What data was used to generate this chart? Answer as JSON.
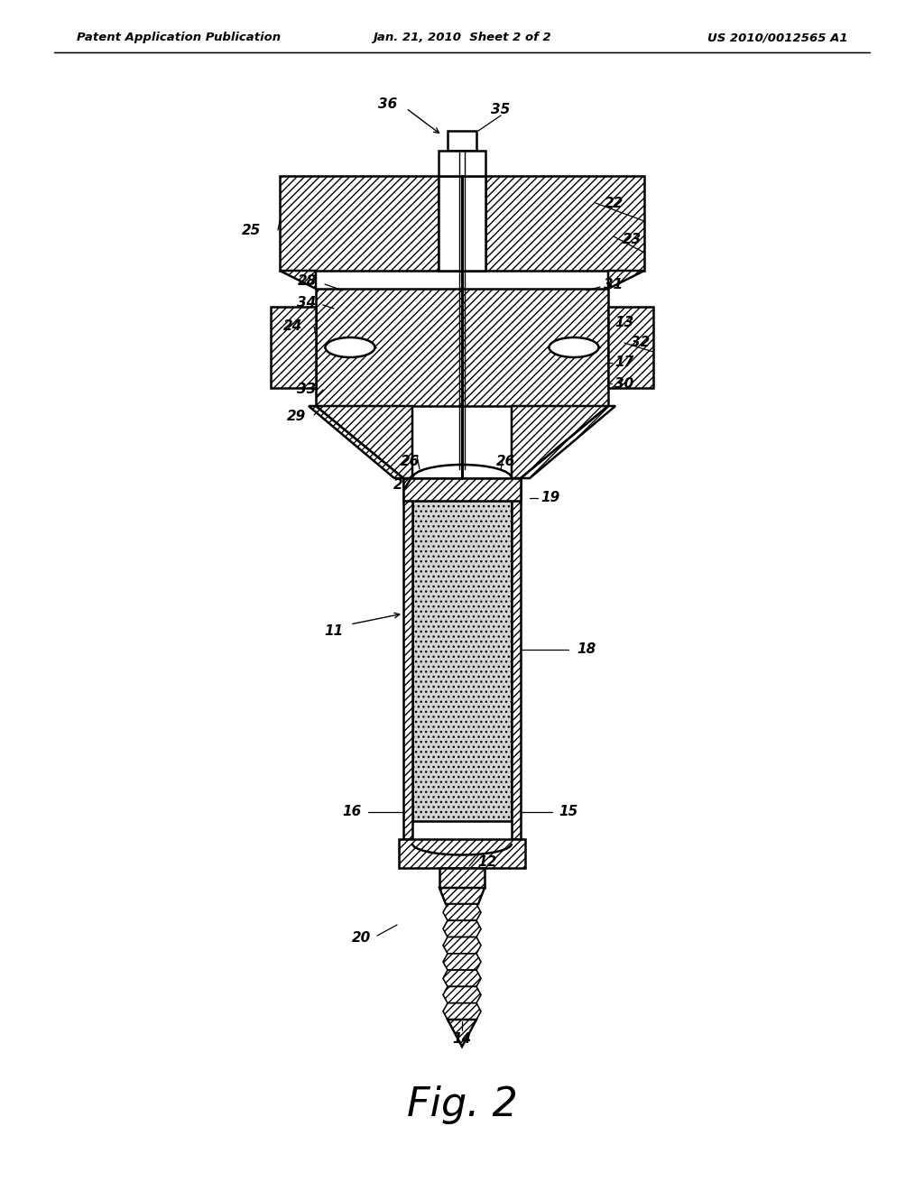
{
  "bg_color": "#ffffff",
  "title_left": "Patent Application Publication",
  "title_mid": "Jan. 21, 2010  Sheet 2 of 2",
  "title_right": "US 2010/0012565 A1",
  "fig_label": "Fig. 2"
}
